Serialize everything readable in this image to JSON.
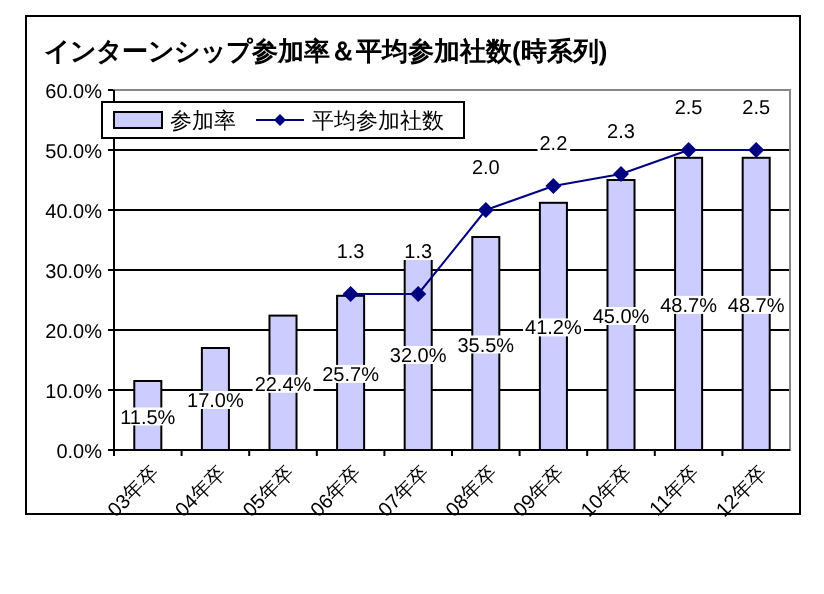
{
  "chart_data": {
    "type": "bar",
    "title": "インターンシップ参加率＆平均参加社数(時系列)",
    "categories": [
      "03年卒",
      "04年卒",
      "05年卒",
      "06年卒",
      "07年卒",
      "08年卒",
      "09年卒",
      "10年卒",
      "11年卒",
      "12年卒"
    ],
    "series": [
      {
        "name": "参加率",
        "color": "#ccccff",
        "values": [
          11.5,
          17.0,
          22.4,
          25.7,
          32.0,
          35.5,
          41.2,
          45.0,
          48.7,
          48.7
        ],
        "value_labels": [
          "11.5%",
          "17.0%",
          "22.4%",
          "25.7%",
          "32.0%",
          "35.5%",
          "41.2%",
          "45.0%",
          "48.7%",
          "48.7%"
        ]
      },
      {
        "name": "平均参加社数",
        "type": "line",
        "axis": "y2",
        "color": "#000080",
        "marker": "diamond",
        "values": [
          null,
          null,
          null,
          1.3,
          1.3,
          2.0,
          2.2,
          2.3,
          2.5,
          2.5
        ],
        "value_labels": [
          null,
          null,
          null,
          "1.3",
          "1.3",
          "2.0",
          "2.2",
          "2.3",
          "2.5",
          "2.5"
        ]
      }
    ],
    "ylim": [
      0,
      60
    ],
    "yticks": [
      {
        "value": 0,
        "label": "0.0%"
      },
      {
        "value": 10,
        "label": "10.0%"
      },
      {
        "value": 20,
        "label": "20.0%"
      },
      {
        "value": 30,
        "label": "30.0%"
      },
      {
        "value": 40,
        "label": "40.0%"
      },
      {
        "value": 50,
        "label": "50.0%"
      },
      {
        "value": 60,
        "label": "60.0%"
      }
    ],
    "y2lim": [
      0,
      3
    ],
    "tick_labels": "xy",
    "grid": "y",
    "legend": "top left"
  }
}
